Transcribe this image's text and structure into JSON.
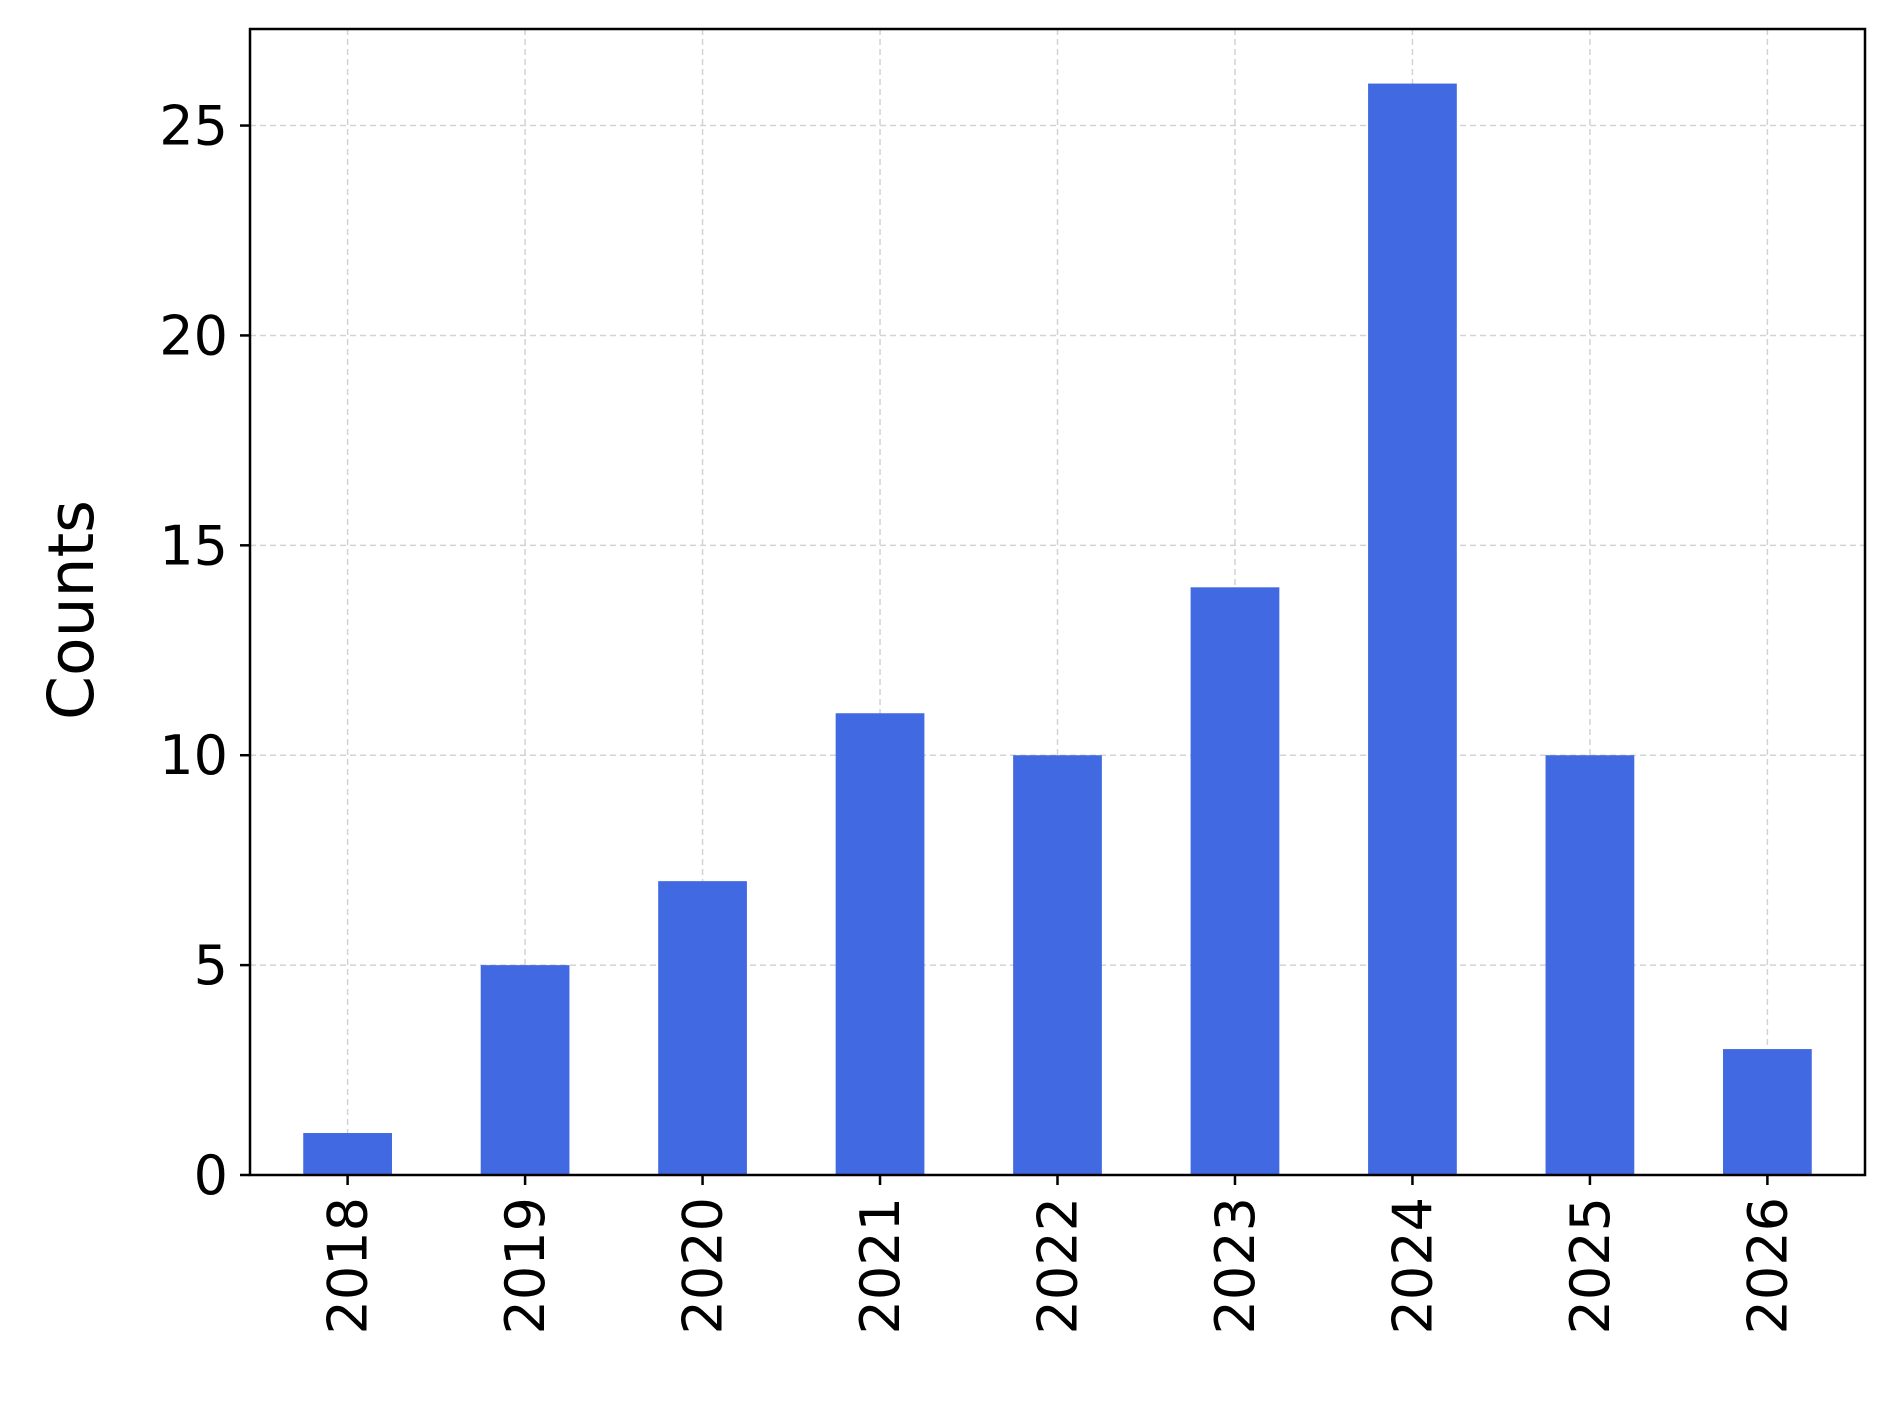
{
  "chart_data": {
    "type": "bar",
    "categories": [
      "2018",
      "2019",
      "2020",
      "2021",
      "2022",
      "2023",
      "2024",
      "2025",
      "2026"
    ],
    "values": [
      1,
      5,
      7,
      11,
      10,
      14,
      26,
      10,
      3
    ],
    "title": "",
    "xlabel": "",
    "ylabel": "Counts",
    "ylim": [
      0,
      27.3
    ],
    "yticks": [
      0,
      5,
      10,
      15,
      20,
      25
    ],
    "grid": true,
    "legend": "none",
    "colors": {
      "bar": "#4169e1",
      "grid": "#d3d3d3",
      "axis": "#000000"
    }
  }
}
